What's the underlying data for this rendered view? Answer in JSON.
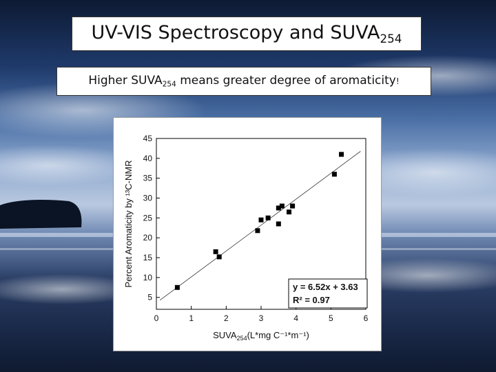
{
  "slide": {
    "title_main": "UV-VIS Spectroscopy and SUVA",
    "title_sub": "254",
    "subtitle_pre": "Higher SUVA",
    "subtitle_sub": "254",
    "subtitle_post": " means greater degree of aromaticity",
    "subtitle_mark": "!"
  },
  "chart_data": {
    "type": "scatter",
    "x": [
      0.6,
      1.7,
      1.8,
      2.9,
      3.0,
      3.2,
      3.5,
      3.5,
      3.6,
      3.8,
      3.9,
      5.1,
      5.3
    ],
    "y": [
      7.5,
      16.5,
      15.2,
      21.8,
      24.5,
      25.0,
      27.5,
      23.5,
      28.0,
      26.5,
      28.0,
      36.0,
      41.0
    ],
    "fit": {
      "slope": 6.52,
      "intercept": 3.63
    },
    "equation_label": "y = 6.52x + 3.63",
    "r2_label": "R² = 0.97",
    "xlabel_main": "SUVA",
    "xlabel_sub": "254",
    "xlabel_units": "(L*mg C⁻¹*m⁻¹)",
    "ylabel": "Percent Aromaticity by ¹³C-NMR",
    "xlim": [
      0,
      6
    ],
    "ylim": [
      2,
      45
    ],
    "x_ticks": [
      "0",
      "1",
      "2",
      "3",
      "4",
      "5",
      "6"
    ],
    "y_ticks": [
      "5",
      "10",
      "15",
      "20",
      "25",
      "30",
      "35",
      "40",
      "45"
    ],
    "grid": false,
    "marker_color": "#000000"
  }
}
